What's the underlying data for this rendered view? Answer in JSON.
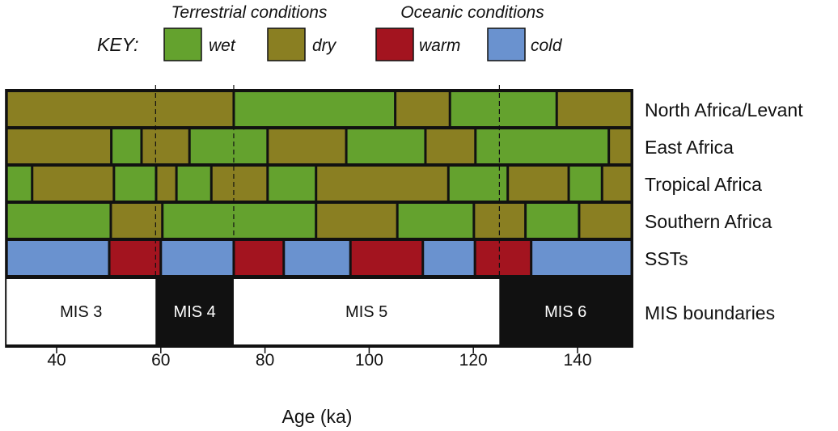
{
  "chart_data": {
    "type": "timeline",
    "key": {
      "label": "KEY:",
      "groups": [
        {
          "title": "Terrestrial conditions",
          "items": [
            {
              "id": "wet",
              "label": "wet",
              "color": "#64a22e"
            },
            {
              "id": "dry",
              "label": "dry",
              "color": "#8a7f22"
            }
          ]
        },
        {
          "title": "Oceanic conditions",
          "items": [
            {
              "id": "warm",
              "label": "warm",
              "color": "#a3141f"
            },
            {
              "id": "cold",
              "label": "cold",
              "color": "#6a92cf"
            }
          ]
        }
      ]
    },
    "xlabel": "Age (ka)",
    "xlim": [
      30.4,
      150.4
    ],
    "xticks": [
      40,
      60,
      80,
      100,
      120,
      140
    ],
    "rows": [
      {
        "label": "North Africa/Levant",
        "segments": [
          [
            30,
            74,
            "dry"
          ],
          [
            74,
            105,
            "wet"
          ],
          [
            105,
            115.5,
            "dry"
          ],
          [
            115.5,
            136,
            "wet"
          ],
          [
            136,
            150.4,
            "dry"
          ]
        ]
      },
      {
        "label": "East Africa",
        "segments": [
          [
            30,
            50.5,
            "dry"
          ],
          [
            50.5,
            56.3,
            "wet"
          ],
          [
            56.3,
            65.5,
            "dry"
          ],
          [
            65.5,
            80.5,
            "wet"
          ],
          [
            80.5,
            95.6,
            "dry"
          ],
          [
            95.6,
            110.8,
            "wet"
          ],
          [
            110.8,
            120.4,
            "dry"
          ],
          [
            120.4,
            146,
            "wet"
          ],
          [
            146,
            150.4,
            "dry"
          ]
        ]
      },
      {
        "label": "Tropical Africa",
        "segments": [
          [
            30,
            35.3,
            "wet"
          ],
          [
            35.3,
            51,
            "dry"
          ],
          [
            51,
            59.1,
            "wet"
          ],
          [
            59.1,
            63,
            "dry"
          ],
          [
            63,
            69.7,
            "wet"
          ],
          [
            69.7,
            80.5,
            "dry"
          ],
          [
            80.5,
            89.8,
            "wet"
          ],
          [
            89.8,
            115.2,
            "dry"
          ],
          [
            115.2,
            126.6,
            "wet"
          ],
          [
            126.6,
            138.3,
            "dry"
          ],
          [
            138.3,
            144.7,
            "wet"
          ],
          [
            144.7,
            150.4,
            "dry"
          ]
        ]
      },
      {
        "label": "Southern Africa",
        "segments": [
          [
            30,
            50.4,
            "wet"
          ],
          [
            50.4,
            60.3,
            "dry"
          ],
          [
            60.3,
            89.8,
            "wet"
          ],
          [
            89.8,
            105.4,
            "dry"
          ],
          [
            105.4,
            120.1,
            "wet"
          ],
          [
            120.1,
            130,
            "dry"
          ],
          [
            130,
            140.3,
            "wet"
          ],
          [
            140.3,
            150.4,
            "dry"
          ]
        ]
      },
      {
        "label": "SSTs",
        "segments": [
          [
            30,
            50.1,
            "cold"
          ],
          [
            50.1,
            60,
            "warm"
          ],
          [
            60,
            74,
            "cold"
          ],
          [
            74,
            83.6,
            "warm"
          ],
          [
            83.6,
            96.4,
            "cold"
          ],
          [
            96.4,
            110.3,
            "warm"
          ],
          [
            110.3,
            120.3,
            "cold"
          ],
          [
            120.3,
            131.1,
            "warm"
          ],
          [
            131.1,
            150.4,
            "cold"
          ]
        ]
      }
    ],
    "mis": {
      "label": "MIS boundaries",
      "stages": [
        {
          "label": "MIS 3",
          "from": 30,
          "to": 59,
          "fill": "#ffffff",
          "text": "#111111"
        },
        {
          "label": "MIS 4",
          "from": 59,
          "to": 74,
          "fill": "#111111",
          "text": "#ffffff"
        },
        {
          "label": "MIS 5",
          "from": 74,
          "to": 125,
          "fill": "#ffffff",
          "text": "#111111"
        },
        {
          "label": "MIS 6",
          "from": 125,
          "to": 150.4,
          "fill": "#111111",
          "text": "#ffffff"
        }
      ],
      "boundaries": [
        59,
        74,
        125
      ]
    }
  }
}
